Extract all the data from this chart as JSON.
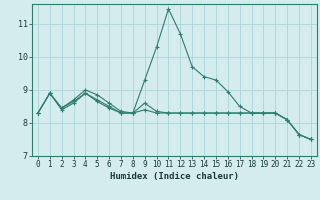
{
  "title": "",
  "xlabel": "Humidex (Indice chaleur)",
  "ylabel": "",
  "background_color": "#d4ecee",
  "grid_color": "#b0d8dc",
  "line_color": "#2e7d6e",
  "xlim": [
    -0.5,
    23.5
  ],
  "ylim": [
    7.0,
    11.6
  ],
  "yticks": [
    7,
    8,
    9,
    10,
    11
  ],
  "xticks": [
    0,
    1,
    2,
    3,
    4,
    5,
    6,
    7,
    8,
    9,
    10,
    11,
    12,
    13,
    14,
    15,
    16,
    17,
    18,
    19,
    20,
    21,
    22,
    23
  ],
  "series": [
    {
      "x": [
        0,
        1,
        2,
        3,
        4,
        5,
        6,
        7,
        8,
        9,
        10,
        11,
        12,
        13,
        14,
        15,
        16,
        17,
        18,
        19,
        20,
        21,
        22,
        23
      ],
      "y": [
        8.3,
        8.9,
        8.4,
        8.6,
        8.9,
        8.7,
        8.5,
        8.3,
        8.3,
        9.3,
        10.3,
        11.45,
        10.7,
        9.7,
        9.4,
        9.3,
        8.95,
        8.5,
        8.3,
        8.3,
        8.3,
        8.1,
        7.65,
        7.5
      ]
    },
    {
      "x": [
        0,
        1,
        2,
        3,
        4,
        5,
        6,
        7,
        8,
        9,
        10,
        11,
        12,
        13,
        14,
        15,
        16,
        17,
        18,
        19,
        20,
        21,
        22,
        23
      ],
      "y": [
        8.3,
        8.9,
        8.45,
        8.7,
        9.0,
        8.85,
        8.6,
        8.35,
        8.3,
        8.6,
        8.35,
        8.3,
        8.3,
        8.3,
        8.3,
        8.3,
        8.3,
        8.3,
        8.3,
        8.3,
        8.3,
        8.1,
        7.65,
        7.5
      ]
    },
    {
      "x": [
        0,
        1,
        2,
        3,
        4,
        5,
        6,
        7,
        8,
        9,
        10,
        11,
        12,
        13,
        14,
        15,
        16,
        17,
        18,
        19,
        20,
        21,
        22,
        23
      ],
      "y": [
        8.3,
        8.9,
        8.45,
        8.65,
        8.9,
        8.65,
        8.45,
        8.3,
        8.3,
        8.4,
        8.3,
        8.3,
        8.3,
        8.3,
        8.3,
        8.3,
        8.3,
        8.3,
        8.3,
        8.3,
        8.3,
        8.1,
        7.65,
        7.5
      ]
    }
  ]
}
